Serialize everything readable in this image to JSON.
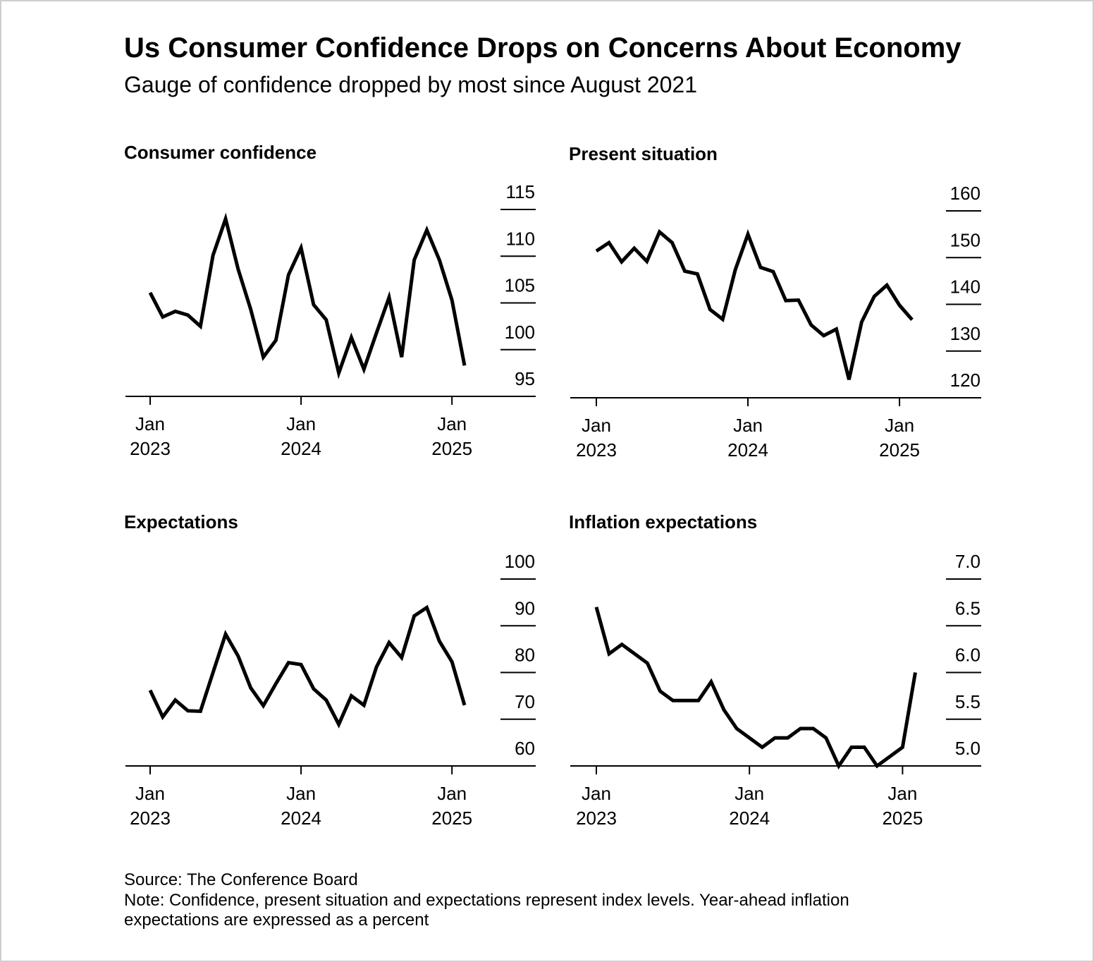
{
  "title": "Us Consumer Confidence Drops on Concerns About Economy",
  "subtitle": "Gauge of confidence dropped by most since August 2021",
  "source": "Source: The Conference Board",
  "note": "Note: Confidence, present situation and expectations represent index levels. Year-ahead inflation expectations are expressed as a percent",
  "chart_data": [
    {
      "type": "line",
      "title": "Consumer confidence",
      "color": "#000000",
      "x": [
        "2023-01",
        "2023-02",
        "2023-03",
        "2023-04",
        "2023-05",
        "2023-06",
        "2023-07",
        "2023-08",
        "2023-09",
        "2023-10",
        "2023-11",
        "2023-12",
        "2024-01",
        "2024-02",
        "2024-03",
        "2024-04",
        "2024-05",
        "2024-06",
        "2024-07",
        "2024-08",
        "2024-09",
        "2024-10",
        "2024-11",
        "2024-12",
        "2025-01",
        "2025-02"
      ],
      "values": [
        106.1,
        103.5,
        104.1,
        103.7,
        102.5,
        110.1,
        114.0,
        108.6,
        104.3,
        99.2,
        101.0,
        108.0,
        110.9,
        104.8,
        103.2,
        97.5,
        101.3,
        97.9,
        101.8,
        105.6,
        99.2,
        109.6,
        112.8,
        109.6,
        105.3,
        98.3
      ],
      "ylim": [
        95,
        115
      ],
      "yticks": [
        95,
        100,
        105,
        110,
        115
      ],
      "xticks": [
        {
          "value": "2023-01",
          "label": "Jan 2023"
        },
        {
          "value": "2024-01",
          "label": "Jan 2024"
        },
        {
          "value": "2025-01",
          "label": "Jan 2025"
        }
      ]
    },
    {
      "type": "line",
      "title": "Present situation",
      "color": "#000000",
      "x": [
        "2023-01",
        "2023-02",
        "2023-03",
        "2023-04",
        "2023-05",
        "2023-06",
        "2023-07",
        "2023-08",
        "2023-09",
        "2023-10",
        "2023-11",
        "2023-12",
        "2024-01",
        "2024-02",
        "2024-03",
        "2024-04",
        "2024-05",
        "2024-06",
        "2024-07",
        "2024-08",
        "2024-09",
        "2024-10",
        "2024-11",
        "2024-12",
        "2025-01",
        "2025-02"
      ],
      "values": [
        151.4,
        153.2,
        149.1,
        152.0,
        149.2,
        155.5,
        153.2,
        147.1,
        146.5,
        138.9,
        136.8,
        147.4,
        155.0,
        147.9,
        147.0,
        140.8,
        140.9,
        135.6,
        133.3,
        134.7,
        123.9,
        136.2,
        141.7,
        144.1,
        139.8,
        136.7
      ],
      "ylim": [
        120,
        160
      ],
      "yticks": [
        120,
        130,
        140,
        150,
        160
      ],
      "xticks": [
        {
          "value": "2023-01",
          "label": "Jan 2023"
        },
        {
          "value": "2024-01",
          "label": "Jan 2024"
        },
        {
          "value": "2025-01",
          "label": "Jan 2025"
        }
      ]
    },
    {
      "type": "line",
      "title": "Expectations",
      "color": "#000000",
      "x": [
        "2023-01",
        "2023-02",
        "2023-03",
        "2023-04",
        "2023-05",
        "2023-06",
        "2023-07",
        "2023-08",
        "2023-09",
        "2023-10",
        "2023-11",
        "2023-12",
        "2024-01",
        "2024-02",
        "2024-03",
        "2024-04",
        "2024-05",
        "2024-06",
        "2024-07",
        "2024-08",
        "2024-09",
        "2024-10",
        "2024-11",
        "2024-12",
        "2025-01",
        "2025-02"
      ],
      "values": [
        76.2,
        70.5,
        74.1,
        71.8,
        71.7,
        80.0,
        88.2,
        83.5,
        76.7,
        72.9,
        77.6,
        82.1,
        81.7,
        76.5,
        74.1,
        68.9,
        75.0,
        73.0,
        81.2,
        86.4,
        83.2,
        92.1,
        93.9,
        86.7,
        82.3,
        73.0
      ],
      "ylim": [
        60,
        100
      ],
      "yticks": [
        60,
        70,
        80,
        90,
        100
      ],
      "xticks": [
        {
          "value": "2023-01",
          "label": "Jan 2023"
        },
        {
          "value": "2024-01",
          "label": "Jan 2024"
        },
        {
          "value": "2025-01",
          "label": "Jan 2025"
        }
      ]
    },
    {
      "type": "line",
      "title": "Inflation expectations",
      "color": "#000000",
      "x": [
        "2023-01",
        "2023-02",
        "2023-03",
        "2023-04",
        "2023-05",
        "2023-06",
        "2023-07",
        "2023-08",
        "2023-09",
        "2023-10",
        "2023-11",
        "2023-12",
        "2024-01",
        "2024-02",
        "2024-03",
        "2024-04",
        "2024-05",
        "2024-06",
        "2024-07",
        "2024-08",
        "2024-09",
        "2024-10",
        "2024-11",
        "2024-12",
        "2025-01",
        "2025-02"
      ],
      "values": [
        6.7,
        6.2,
        6.3,
        6.2,
        6.1,
        5.8,
        5.7,
        5.7,
        5.7,
        5.9,
        5.6,
        5.4,
        5.3,
        5.2,
        5.3,
        5.3,
        5.4,
        5.4,
        5.3,
        5.0,
        5.2,
        5.2,
        5.0,
        5.1,
        5.2,
        6.0
      ],
      "ylim": [
        5,
        7
      ],
      "yticks": [
        {
          "value": 5,
          "label": "5.0"
        },
        5.5,
        {
          "value": 6,
          "label": "6.0"
        },
        6.5,
        {
          "value": 7,
          "label": "7.0"
        }
      ],
      "xticks": [
        {
          "value": "2023-01",
          "label": "Jan 2023"
        },
        {
          "value": "2024-01",
          "label": "Jan 2024"
        },
        {
          "value": "2025-01",
          "label": "Jan 2025"
        }
      ]
    }
  ]
}
